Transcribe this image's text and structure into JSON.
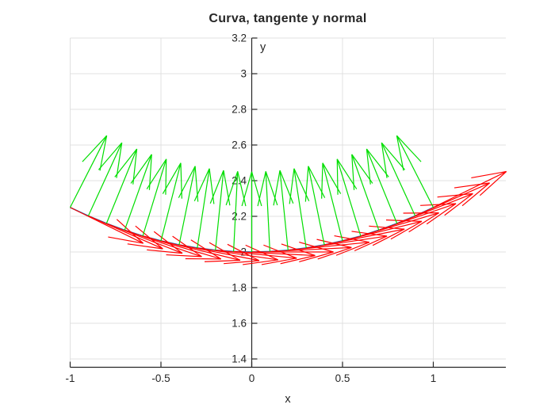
{
  "chart": {
    "type": "quiver",
    "title": "Curva, tangente y normal",
    "xlabel": "x",
    "ylabel": "y",
    "xlim": [
      -1,
      1.4
    ],
    "ylim": [
      1.35,
      3.2
    ],
    "grid": true,
    "xticks": {
      "values": [
        -1,
        -0.5,
        0,
        0.5,
        1
      ],
      "labels": [
        "-1",
        "-0.5",
        "0",
        "0.5",
        "1"
      ]
    },
    "yticks": {
      "values": [
        1.4,
        1.6,
        1.8,
        2,
        2.2,
        2.4,
        2.6,
        2.8,
        3,
        3.2
      ],
      "labels": [
        "1.4",
        "1.6",
        "1.8",
        "2",
        "2.2",
        "2.4",
        "2.6",
        "2.8",
        "3",
        "3.2"
      ]
    },
    "colors": {
      "curve": "#0072BD",
      "tangent": "#FF0000",
      "normal": "#00DE00",
      "axis": "#262626",
      "grid": "#E0E0E0",
      "label": "#262626",
      "background": "#FFFFFF"
    },
    "curve": {
      "equation": "r(t) = (t, 2 + t^2/4), t in [-1,1]",
      "points": [
        [
          -1.0,
          2.25
        ],
        [
          -0.9,
          2.2025
        ],
        [
          -0.8,
          2.16
        ],
        [
          -0.7,
          2.1225
        ],
        [
          -0.6,
          2.09
        ],
        [
          -0.5,
          2.0625
        ],
        [
          -0.4,
          2.04
        ],
        [
          -0.3,
          2.0225
        ],
        [
          -0.2,
          2.01
        ],
        [
          -0.1,
          2.0025
        ],
        [
          0.0,
          2.0
        ],
        [
          0.1,
          2.0025
        ],
        [
          0.2,
          2.01
        ],
        [
          0.3,
          2.0225
        ],
        [
          0.4,
          2.04
        ],
        [
          0.5,
          2.0625
        ],
        [
          0.6,
          2.09
        ],
        [
          0.7,
          2.1225
        ],
        [
          0.8,
          2.16
        ],
        [
          0.9,
          2.2025
        ],
        [
          1.0,
          2.25
        ]
      ]
    },
    "vectors": {
      "scale": 0.45,
      "t_step": 0.1,
      "tangents": [
        [
          0.40249,
          -0.20125
        ],
        [
          0.41036,
          -0.18466
        ],
        [
          0.41782,
          -0.16713
        ],
        [
          0.42474,
          -0.14866
        ],
        [
          0.43102,
          -0.12931
        ],
        [
          0.43656,
          -0.10914
        ],
        [
          0.44126,
          -0.08825
        ],
        [
          0.44502,
          -0.06675
        ],
        [
          0.44777,
          -0.04478
        ],
        [
          0.44944,
          -0.02247
        ],
        [
          0.45,
          0.0
        ],
        [
          0.44944,
          0.02247
        ],
        [
          0.44777,
          0.04478
        ],
        [
          0.44502,
          0.06675
        ],
        [
          0.44126,
          0.08825
        ],
        [
          0.43656,
          0.10914
        ],
        [
          0.43102,
          0.12931
        ],
        [
          0.42474,
          0.14866
        ],
        [
          0.41782,
          0.16713
        ],
        [
          0.41036,
          0.18466
        ],
        [
          0.40249,
          0.20125
        ]
      ],
      "normals": [
        [
          0.20125,
          0.40249
        ],
        [
          0.18466,
          0.41036
        ],
        [
          0.16713,
          0.41782
        ],
        [
          0.14866,
          0.42474
        ],
        [
          0.12931,
          0.43102
        ],
        [
          0.10914,
          0.43656
        ],
        [
          0.08825,
          0.44126
        ],
        [
          0.06675,
          0.44502
        ],
        [
          0.04478,
          0.44777
        ],
        [
          0.02247,
          0.44944
        ],
        [
          0.0,
          0.45
        ],
        [
          -0.02247,
          0.44944
        ],
        [
          -0.04478,
          0.44777
        ],
        [
          -0.06675,
          0.44502
        ],
        [
          -0.08825,
          0.44126
        ],
        [
          -0.10914,
          0.43656
        ],
        [
          -0.12931,
          0.43102
        ],
        [
          -0.14866,
          0.42474
        ],
        [
          -0.16713,
          0.41782
        ],
        [
          -0.18466,
          0.41036
        ],
        [
          -0.20125,
          0.40249
        ]
      ]
    }
  }
}
